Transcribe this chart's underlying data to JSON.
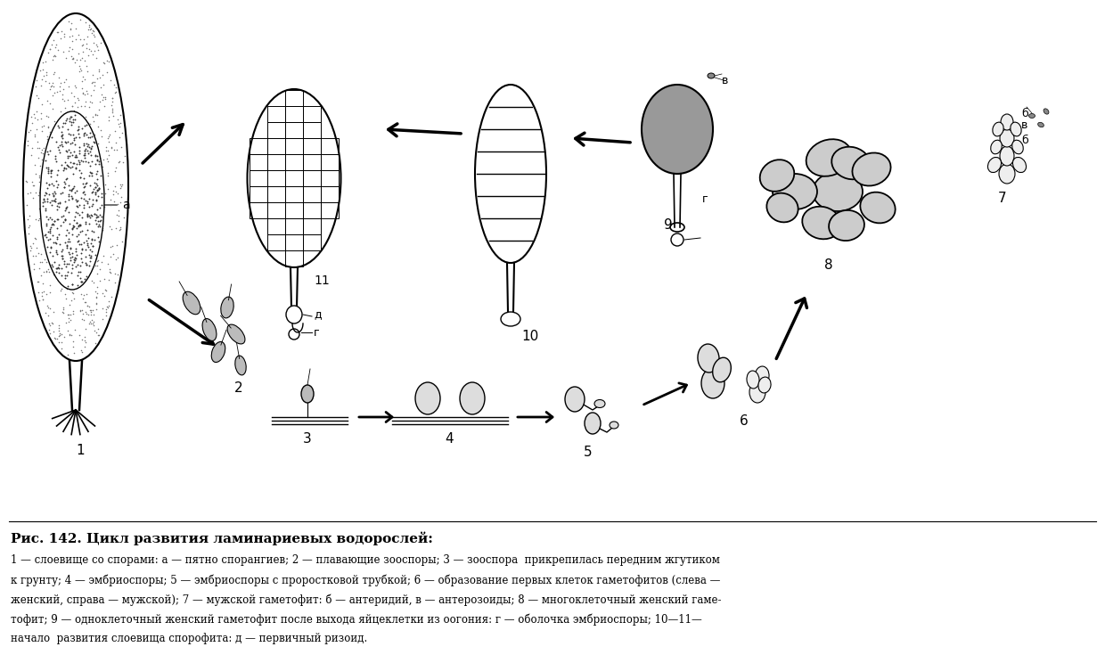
{
  "title": "Рис. 142. Цикл развития ламинариевых водорослей:",
  "caption_line1": "1 — слоевище со спорами: а — пятно спорангиев; 2 — плавающие зооспоры; 3 — зооспора  прикрепилась передним жгутиком",
  "caption_line2": "к грунту; 4 — эмбриоспоры; 5 — эмбриоспоры с проростковой трубкой; 6 — образование первых клеток гаметофитов (слева —",
  "caption_line3": "женский, справа — мужской); 7 — мужской гаметофит: б — антеридий, в — антерозоиды; 8 — многоклеточный женский гаме-",
  "caption_line4": "тофит; 9 — одноклеточный женский гаметофит после выхода яйцеклетки из оогония: г — оболочка эмбриоспоры; 10—11—",
  "caption_line5": "начало  развития слоевища спорофита: д — первичный ризоид.",
  "bg_color": "#ffffff",
  "line_color": "#000000",
  "fig_width": 12.4,
  "fig_height": 7.35
}
